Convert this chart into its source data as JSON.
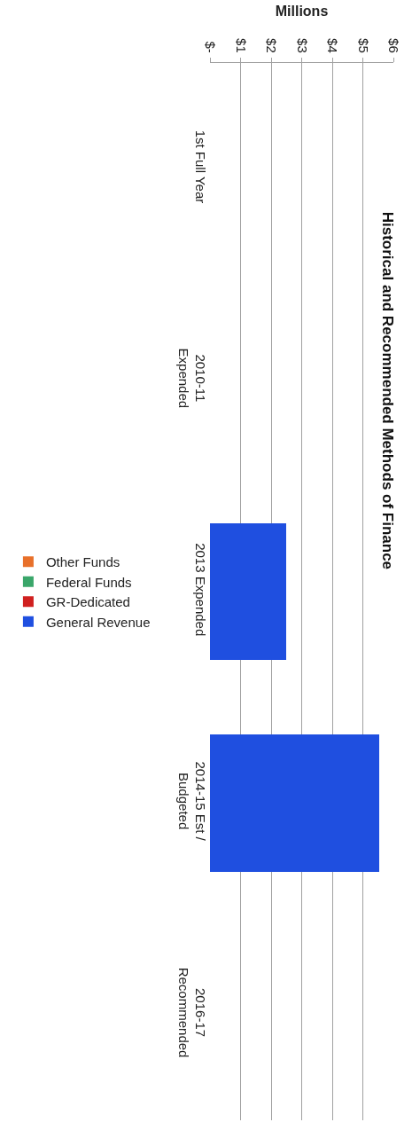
{
  "chart_data": {
    "type": "bar",
    "orientation": "horizontal",
    "stacked": true,
    "title": "Historical and Recommended Methods of Finance",
    "xlabel": "Millions",
    "categories": [
      "1st Full Year",
      "2010-11 Expended",
      "2013 Expended",
      "2014-15 Est / Budgeted",
      "2016-17 Recommended"
    ],
    "series": [
      {
        "name": "General Revenue",
        "color": "#1f4fe0",
        "values": [
          0,
          0,
          2.5,
          5.55,
          0
        ]
      },
      {
        "name": "GR-Dedicated",
        "color": "#d0201f",
        "values": [
          0,
          0,
          0,
          0,
          0
        ]
      },
      {
        "name": "Federal Funds",
        "color": "#3aa66a",
        "values": [
          0,
          0,
          0,
          0,
          0
        ]
      },
      {
        "name": "Other Funds",
        "color": "#e8702a",
        "values": [
          0,
          0,
          0,
          0,
          0
        ]
      }
    ],
    "xlim": [
      0,
      6
    ],
    "xticks": [
      {
        "value": 0,
        "label": "$-"
      },
      {
        "value": 1,
        "label": "$1"
      },
      {
        "value": 2,
        "label": "$2"
      },
      {
        "value": 3,
        "label": "$3"
      },
      {
        "value": 4,
        "label": "$4"
      },
      {
        "value": 5,
        "label": "$5"
      },
      {
        "value": 6,
        "label": "$6"
      }
    ],
    "grid": "x",
    "legend": "left"
  }
}
